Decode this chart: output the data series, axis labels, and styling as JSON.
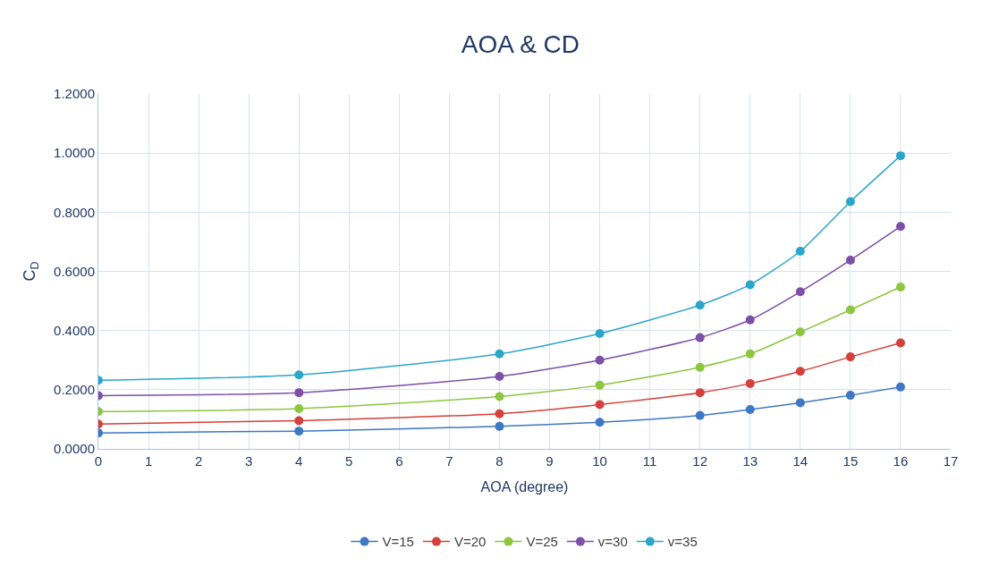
{
  "chart_data": {
    "type": "line",
    "title": "AOA & CD",
    "xlabel": "AOA (degree)",
    "ylabel": "C$_{D}$",
    "x": [
      0,
      4,
      8,
      10,
      12,
      13,
      14,
      15,
      16
    ],
    "series": [
      {
        "name": "V=15",
        "color": "#3e78c4",
        "values": [
          0.054,
          0.06,
          0.076,
          0.09,
          0.113,
          0.133,
          0.156,
          0.181,
          0.209
        ]
      },
      {
        "name": "V=20",
        "color": "#d3413a",
        "values": [
          0.084,
          0.095,
          0.119,
          0.15,
          0.19,
          0.221,
          0.262,
          0.311,
          0.358
        ]
      },
      {
        "name": "V=25",
        "color": "#8dc63f",
        "values": [
          0.126,
          0.136,
          0.177,
          0.215,
          0.276,
          0.321,
          0.395,
          0.47,
          0.547
        ]
      },
      {
        "name": "v=30",
        "color": "#7d4fa6",
        "values": [
          0.18,
          0.19,
          0.245,
          0.3,
          0.376,
          0.436,
          0.531,
          0.638,
          0.752
        ]
      },
      {
        "name": "v=35",
        "color": "#2ba6c9",
        "values": [
          0.232,
          0.25,
          0.321,
          0.39,
          0.486,
          0.555,
          0.668,
          0.836,
          0.991
        ]
      }
    ],
    "xlim": [
      0,
      17
    ],
    "xticks": [
      0,
      1,
      2,
      3,
      4,
      5,
      6,
      7,
      8,
      9,
      10,
      11,
      12,
      13,
      14,
      15,
      16,
      17
    ],
    "ylim": [
      0,
      1.2
    ],
    "yticks": [
      {
        "value": 0,
        "label": "0.0000"
      },
      {
        "value": 0.2,
        "label": "0.2000"
      },
      {
        "value": 0.4,
        "label": "0.4000"
      },
      {
        "value": 0.6,
        "label": "0.6000"
      },
      {
        "value": 0.8,
        "label": "0.8000"
      },
      {
        "value": 1.0,
        "label": "1.0000"
      },
      {
        "value": 1.2,
        "label": "1.2000"
      }
    ],
    "grid": true,
    "legend": "bottom",
    "marker": "circle",
    "line_style": "solid"
  }
}
